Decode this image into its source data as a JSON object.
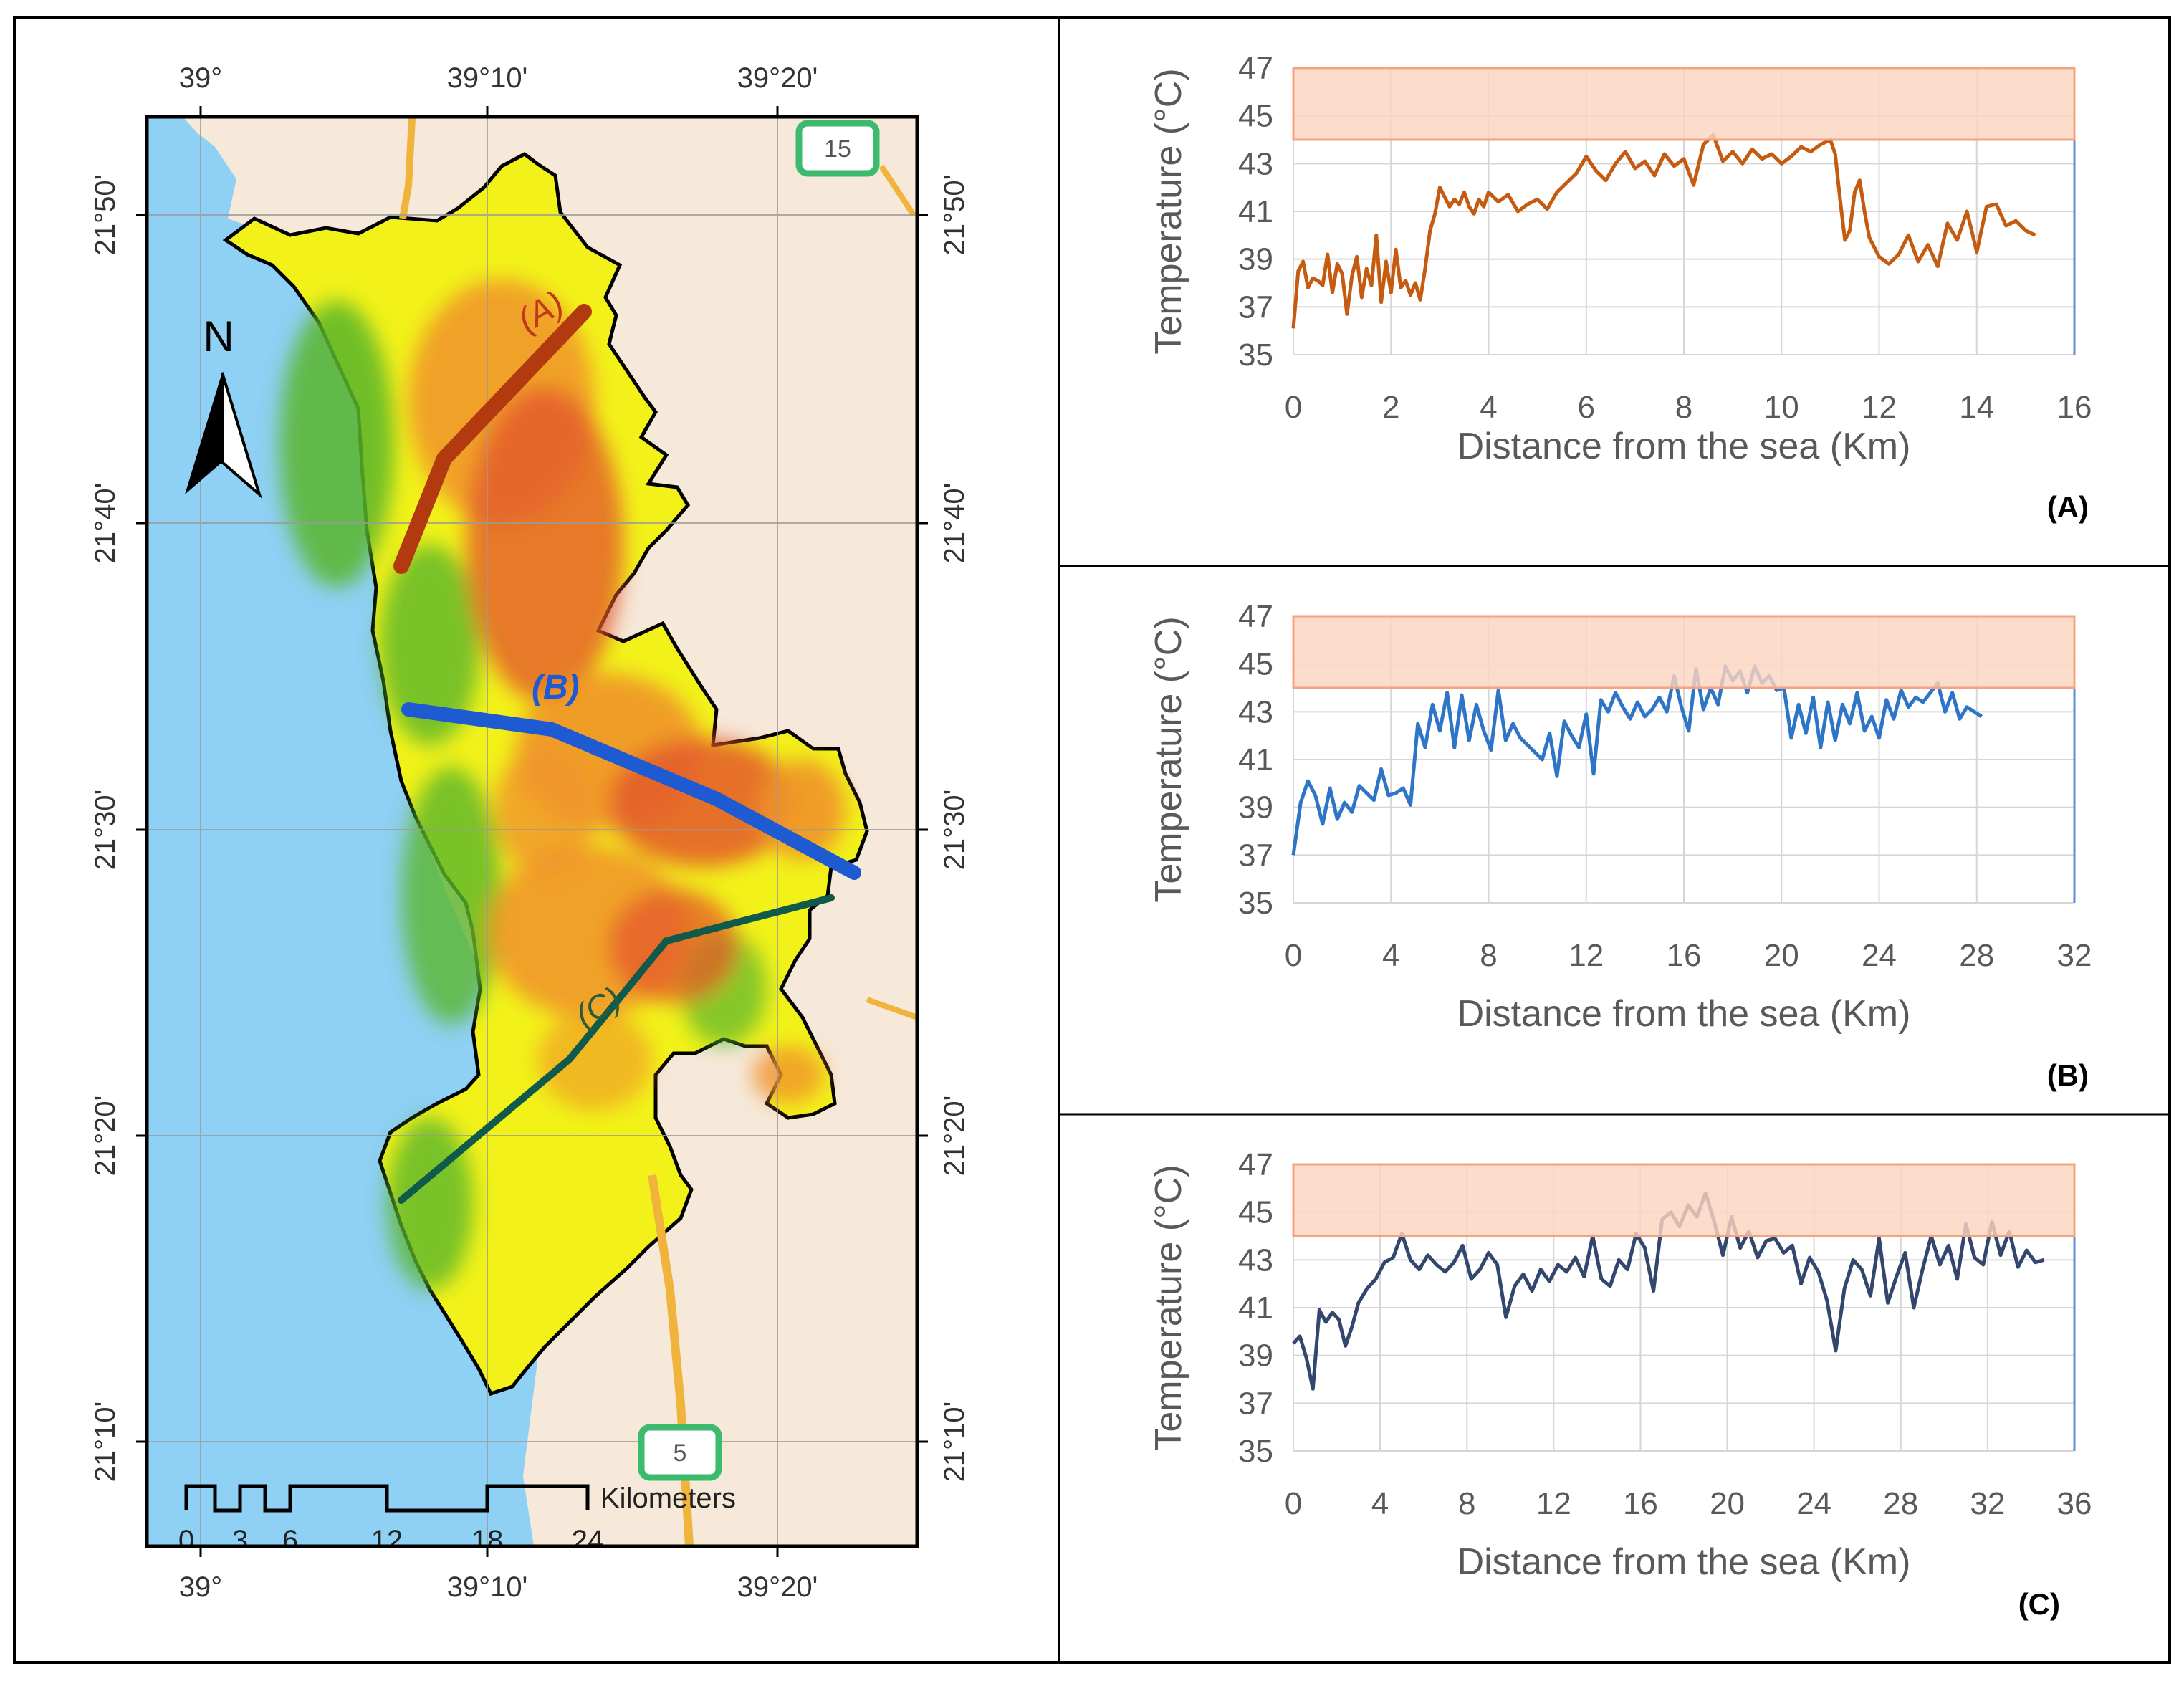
{
  "map": {
    "top_lon_labels": [
      "39°",
      "39°10'",
      "39°20'"
    ],
    "bottom_lon_labels": [
      "39°",
      "39°10'",
      "39°20'"
    ],
    "left_lat_labels": [
      "21°50'",
      "21°40'",
      "21°30'",
      "21°20'",
      "21°10'"
    ],
    "right_lat_labels": [
      "21°50'",
      "21°40'",
      "21°30'",
      "21°20'",
      "21°10'"
    ],
    "north_label": "N",
    "transect_labels": [
      "(A)",
      "(B)",
      "(C)"
    ],
    "road_labels": [
      "15",
      "5"
    ],
    "scale_values": [
      "0",
      "3",
      "6",
      "12",
      "18",
      "24"
    ],
    "scale_unit": "Kilometers",
    "colors": {
      "sea": "#8fd0f5",
      "land": "#f6e9da",
      "city_yellow": "#f2f21a",
      "city_orange": "#f0932a",
      "city_red": "#e45a2a",
      "city_green": "#5ab52c",
      "transect_A": "#b33a0f",
      "transect_B": "#1e5ad2",
      "transect_C": "#0f5a4a",
      "road": "#f0b43c"
    }
  },
  "chart_data": [
    {
      "type": "line",
      "panel": "(A)",
      "xlabel": "Distance from the sea (Km)",
      "ylabel": "Temperature (°C)",
      "xlim": [
        0,
        16
      ],
      "ylim": [
        35,
        47
      ],
      "xticks": [
        0,
        2,
        4,
        6,
        8,
        10,
        12,
        14,
        16
      ],
      "yticks": [
        35,
        37,
        39,
        41,
        43,
        45,
        47
      ],
      "band": [
        44,
        47
      ],
      "band_color": "#fbd4c0",
      "band_edge": "#f4a37e",
      "line_color": "#c55a11",
      "x": [
        0,
        0.1,
        0.2,
        0.3,
        0.4,
        0.5,
        0.6,
        0.7,
        0.8,
        0.9,
        1.0,
        1.1,
        1.2,
        1.3,
        1.4,
        1.5,
        1.6,
        1.7,
        1.8,
        1.9,
        2.0,
        2.1,
        2.2,
        2.3,
        2.4,
        2.5,
        2.6,
        2.7,
        2.8,
        2.9,
        3.0,
        3.1,
        3.2,
        3.3,
        3.4,
        3.5,
        3.6,
        3.7,
        3.8,
        3.9,
        4.0,
        4.2,
        4.4,
        4.6,
        4.8,
        5.0,
        5.2,
        5.4,
        5.6,
        5.8,
        6.0,
        6.2,
        6.4,
        6.6,
        6.8,
        7.0,
        7.2,
        7.4,
        7.6,
        7.8,
        8.0,
        8.2,
        8.4,
        8.6,
        8.8,
        9.0,
        9.2,
        9.4,
        9.6,
        9.8,
        10.0,
        10.2,
        10.4,
        10.6,
        10.8,
        11.0,
        11.1,
        11.2,
        11.3,
        11.4,
        11.5,
        11.6,
        11.7,
        11.8,
        11.9,
        12.0,
        12.2,
        12.4,
        12.6,
        12.8,
        13.0,
        13.2,
        13.4,
        13.6,
        13.8,
        14.0,
        14.2,
        14.4,
        14.6,
        14.8,
        15.0,
        15.2
      ],
      "y": [
        36.1,
        38.5,
        38.9,
        37.8,
        38.2,
        38.1,
        37.9,
        39.2,
        37.6,
        38.8,
        38.4,
        36.7,
        38.3,
        39.1,
        37.4,
        38.6,
        37.9,
        40.0,
        37.2,
        38.9,
        37.6,
        39.4,
        37.8,
        38.1,
        37.5,
        38.0,
        37.3,
        38.6,
        40.2,
        40.9,
        42.0,
        41.6,
        41.2,
        41.5,
        41.3,
        41.8,
        41.2,
        40.9,
        41.5,
        41.2,
        41.8,
        41.4,
        41.7,
        41.0,
        41.3,
        41.5,
        41.1,
        41.8,
        42.2,
        42.6,
        43.3,
        42.7,
        42.3,
        43.0,
        43.5,
        42.8,
        43.1,
        42.5,
        43.4,
        42.9,
        43.2,
        42.1,
        43.8,
        44.2,
        43.1,
        43.5,
        43.0,
        43.6,
        43.2,
        43.4,
        43.0,
        43.3,
        43.7,
        43.5,
        43.8,
        44.0,
        43.4,
        41.5,
        39.8,
        40.2,
        41.8,
        42.3,
        41.0,
        39.9,
        39.5,
        39.1,
        38.8,
        39.2,
        40.0,
        38.9,
        39.6,
        38.7,
        40.5,
        39.8,
        41.0,
        39.3,
        41.2,
        41.3,
        40.4,
        40.6,
        40.2,
        40.0
      ]
    },
    {
      "type": "line",
      "panel": "(B)",
      "xlabel": "Distance from the sea (Km)",
      "ylabel": "Temperature (°C)",
      "xlim": [
        0,
        32
      ],
      "ylim": [
        35,
        47
      ],
      "xticks": [
        0,
        4,
        8,
        12,
        16,
        20,
        24,
        28,
        32
      ],
      "yticks": [
        35,
        37,
        39,
        41,
        43,
        45,
        47
      ],
      "band": [
        44,
        47
      ],
      "band_color": "#fbd4c0",
      "band_edge": "#f4a37e",
      "line_color": "#2e75c8",
      "x": [
        0,
        0.3,
        0.6,
        0.9,
        1.2,
        1.5,
        1.8,
        2.1,
        2.4,
        2.7,
        3.0,
        3.3,
        3.6,
        3.9,
        4.2,
        4.5,
        4.8,
        5.1,
        5.4,
        5.7,
        6.0,
        6.3,
        6.6,
        6.9,
        7.2,
        7.5,
        7.8,
        8.1,
        8.4,
        8.7,
        9.0,
        9.3,
        9.6,
        9.9,
        10.2,
        10.5,
        10.8,
        11.1,
        11.4,
        11.7,
        12.0,
        12.3,
        12.6,
        12.9,
        13.2,
        13.5,
        13.8,
        14.1,
        14.4,
        14.7,
        15.0,
        15.3,
        15.6,
        15.9,
        16.2,
        16.5,
        16.8,
        17.1,
        17.4,
        17.7,
        18.0,
        18.3,
        18.6,
        18.9,
        19.2,
        19.5,
        19.8,
        20.1,
        20.4,
        20.7,
        21.0,
        21.3,
        21.6,
        21.9,
        22.2,
        22.5,
        22.8,
        23.1,
        23.4,
        23.7,
        24.0,
        24.3,
        24.6,
        24.9,
        25.2,
        25.5,
        25.8,
        26.1,
        26.4,
        26.7,
        27.0,
        27.3,
        27.6,
        27.9,
        28.2
      ],
      "y": [
        37.0,
        39.2,
        40.1,
        39.5,
        38.3,
        39.8,
        38.5,
        39.2,
        38.8,
        39.9,
        39.6,
        39.3,
        40.6,
        39.5,
        39.6,
        39.8,
        39.1,
        42.5,
        41.5,
        43.3,
        42.2,
        43.8,
        41.5,
        43.7,
        41.8,
        43.3,
        42.2,
        41.4,
        43.9,
        41.8,
        42.5,
        41.9,
        41.6,
        41.3,
        41.0,
        42.1,
        40.3,
        42.6,
        42.0,
        41.5,
        42.9,
        40.4,
        43.5,
        43.0,
        43.8,
        43.2,
        42.7,
        43.4,
        42.8,
        43.1,
        43.6,
        43.0,
        44.5,
        43.2,
        42.2,
        44.8,
        43.1,
        44.0,
        43.3,
        44.9,
        44.3,
        44.7,
        43.8,
        44.9,
        44.2,
        44.5,
        43.9,
        44.0,
        41.9,
        43.3,
        42.1,
        43.6,
        41.5,
        43.4,
        41.8,
        43.3,
        42.5,
        43.8,
        42.2,
        42.8,
        41.9,
        43.5,
        42.7,
        43.9,
        43.2,
        43.6,
        43.4,
        43.8,
        44.2,
        43.0,
        43.8,
        42.7,
        43.2,
        43.0,
        42.8
      ]
    },
    {
      "type": "line",
      "panel": "(C)",
      "xlabel": "Distance from the sea (Km)",
      "ylabel": "Temperature (°C)",
      "xlim": [
        0,
        36
      ],
      "ylim": [
        35,
        47
      ],
      "xticks": [
        0,
        4,
        8,
        12,
        16,
        20,
        24,
        28,
        32,
        36
      ],
      "yticks": [
        35,
        37,
        39,
        41,
        43,
        45,
        47
      ],
      "band": [
        44,
        47
      ],
      "band_color": "#fbd4c0",
      "band_edge": "#f4a37e",
      "line_color": "#33466e",
      "x": [
        0,
        0.3,
        0.6,
        0.9,
        1.2,
        1.5,
        1.8,
        2.1,
        2.4,
        2.7,
        3.0,
        3.4,
        3.8,
        4.2,
        4.6,
        5.0,
        5.4,
        5.8,
        6.2,
        6.6,
        7.0,
        7.4,
        7.8,
        8.2,
        8.6,
        9.0,
        9.4,
        9.8,
        10.2,
        10.6,
        11.0,
        11.4,
        11.8,
        12.2,
        12.6,
        13.0,
        13.4,
        13.8,
        14.2,
        14.6,
        15.0,
        15.4,
        15.8,
        16.2,
        16.6,
        17.0,
        17.4,
        17.8,
        18.2,
        18.6,
        19.0,
        19.4,
        19.8,
        20.2,
        20.6,
        21.0,
        21.4,
        21.8,
        22.2,
        22.6,
        23.0,
        23.4,
        23.8,
        24.2,
        24.6,
        25.0,
        25.4,
        25.8,
        26.2,
        26.6,
        27.0,
        27.4,
        27.8,
        28.2,
        28.6,
        29.0,
        29.4,
        29.8,
        30.2,
        30.6,
        31.0,
        31.4,
        31.8,
        32.2,
        32.6,
        33.0,
        33.4,
        33.8,
        34.2,
        34.6
      ],
      "y": [
        39.5,
        39.8,
        38.9,
        37.6,
        40.9,
        40.4,
        40.8,
        40.5,
        39.4,
        40.2,
        41.2,
        41.8,
        42.2,
        42.9,
        43.1,
        44.1,
        43.0,
        42.6,
        43.2,
        42.8,
        42.5,
        42.9,
        43.6,
        42.2,
        42.6,
        43.3,
        42.8,
        40.6,
        41.9,
        42.4,
        41.7,
        42.6,
        42.1,
        42.8,
        42.5,
        43.1,
        42.3,
        44.0,
        42.2,
        41.9,
        43.0,
        42.6,
        44.1,
        43.5,
        41.7,
        44.7,
        45.0,
        44.4,
        45.3,
        44.8,
        45.8,
        44.6,
        43.2,
        44.8,
        43.5,
        44.2,
        43.1,
        43.8,
        43.9,
        43.3,
        43.6,
        42.0,
        43.1,
        42.5,
        41.3,
        39.2,
        41.8,
        43.0,
        42.6,
        41.5,
        43.9,
        41.2,
        42.3,
        43.3,
        41.0,
        42.6,
        44.0,
        42.8,
        43.6,
        42.2,
        44.5,
        43.1,
        42.8,
        44.6,
        43.2,
        44.2,
        42.7,
        43.4,
        42.9,
        43.0
      ]
    }
  ]
}
